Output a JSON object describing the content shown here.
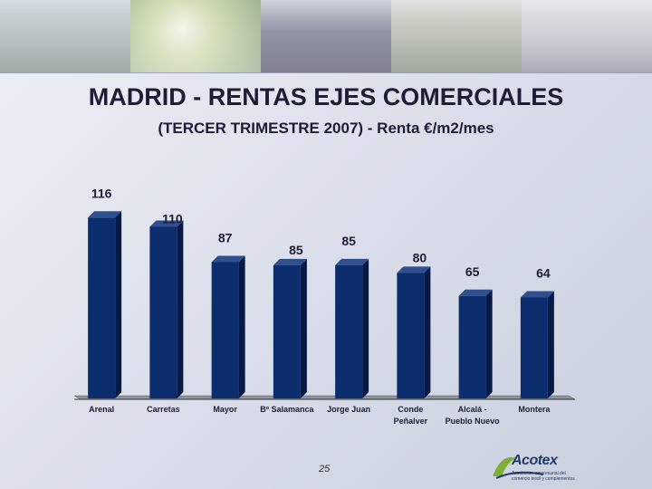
{
  "header": {
    "title": "MADRID - RENTAS EJES COMERCIALES",
    "subtitle": "(TERCER TRIMESTRE 2007) - Renta €/m2/mes"
  },
  "chart_data": {
    "type": "bar",
    "categories": [
      "Arenal",
      "Carretas",
      "Mayor",
      "Bº Salamanca",
      "Jorge Juan",
      "Conde Peñalver",
      "Alcalá - Pueblo Nuevo",
      "Montera"
    ],
    "category_lines": [
      [
        "Arenal"
      ],
      [
        "Carretas"
      ],
      [
        "Mayor"
      ],
      [
        "Bº Salamanca"
      ],
      [
        "Jorge Juan"
      ],
      [
        "Conde",
        "Peñalver"
      ],
      [
        "Alcalá -",
        "Pueblo Nuevo"
      ],
      [
        "Montera"
      ]
    ],
    "values": [
      116,
      110,
      87,
      85,
      85,
      80,
      65,
      64
    ],
    "title": "MADRID - RENTAS EJES COMERCIALES",
    "subtitle": "(TERCER TRIMESTRE 2007) - Renta €/m2/mes",
    "xlabel": "",
    "ylabel": "",
    "ylim": [
      0,
      125
    ],
    "bar_color": "#0b2d6e",
    "grid": false
  },
  "footer": {
    "page_number": "25",
    "logo_text": "Acotex",
    "logo_tagline": "Asociación empresarial del comercio textil y complementos"
  }
}
